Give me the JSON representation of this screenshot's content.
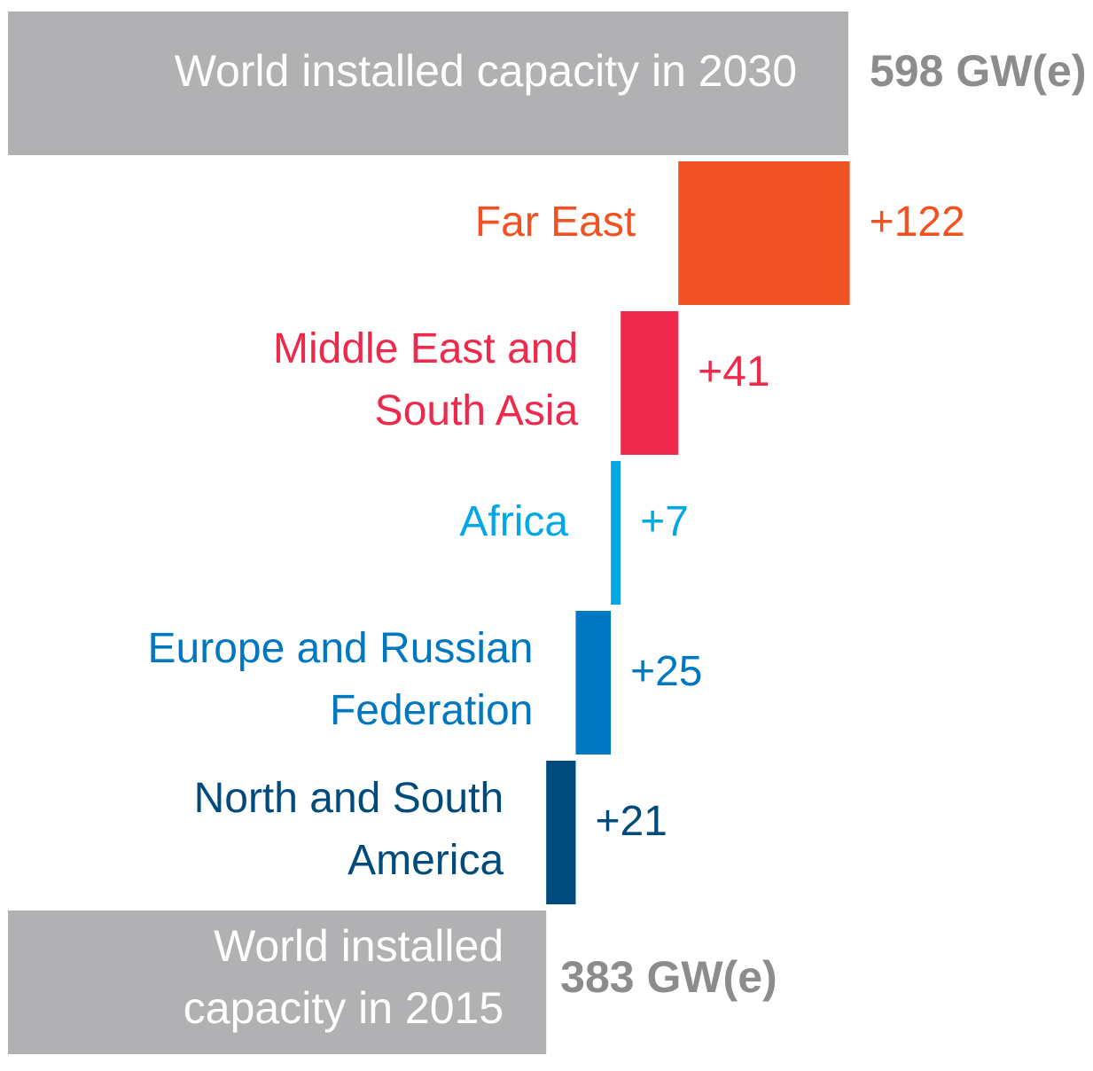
{
  "chart_data": {
    "type": "bar",
    "subtype": "waterfall",
    "orientation": "horizontal",
    "start": {
      "label_lines": [
        "World installed",
        "capacity in 2015"
      ],
      "value": 383,
      "value_label": "383 GW(e)",
      "color": "#b1b1b3"
    },
    "end": {
      "label_lines": [
        "World installed capacity in 2030"
      ],
      "value": 598,
      "value_label": "598 GW(e)",
      "color": "#b1b1b3"
    },
    "categories": [
      "North and South America",
      "Europe and Russian Federation",
      "Africa",
      "Middle East and South Asia",
      "Far East"
    ],
    "increments": [
      {
        "label_lines": [
          "North and South",
          "America"
        ],
        "value": 21,
        "value_label": "+21",
        "color": "#004a7c"
      },
      {
        "label_lines": [
          "Europe and Russian",
          "Federation"
        ],
        "value": 25,
        "value_label": "+25",
        "color": "#0078c1"
      },
      {
        "label_lines": [
          "Africa"
        ],
        "value": 7,
        "value_label": "+7",
        "color": "#00a9e6"
      },
      {
        "label_lines": [
          "Middle East and",
          "South Asia"
        ],
        "value": 41,
        "value_label": "+41",
        "color": "#ee2a4c"
      },
      {
        "label_lines": [
          "Far East"
        ],
        "value": 122,
        "value_label": "+122",
        "color": "#f15223"
      }
    ],
    "total_value_color": "#8c8c8e",
    "xlim": [
      0,
      598
    ]
  }
}
